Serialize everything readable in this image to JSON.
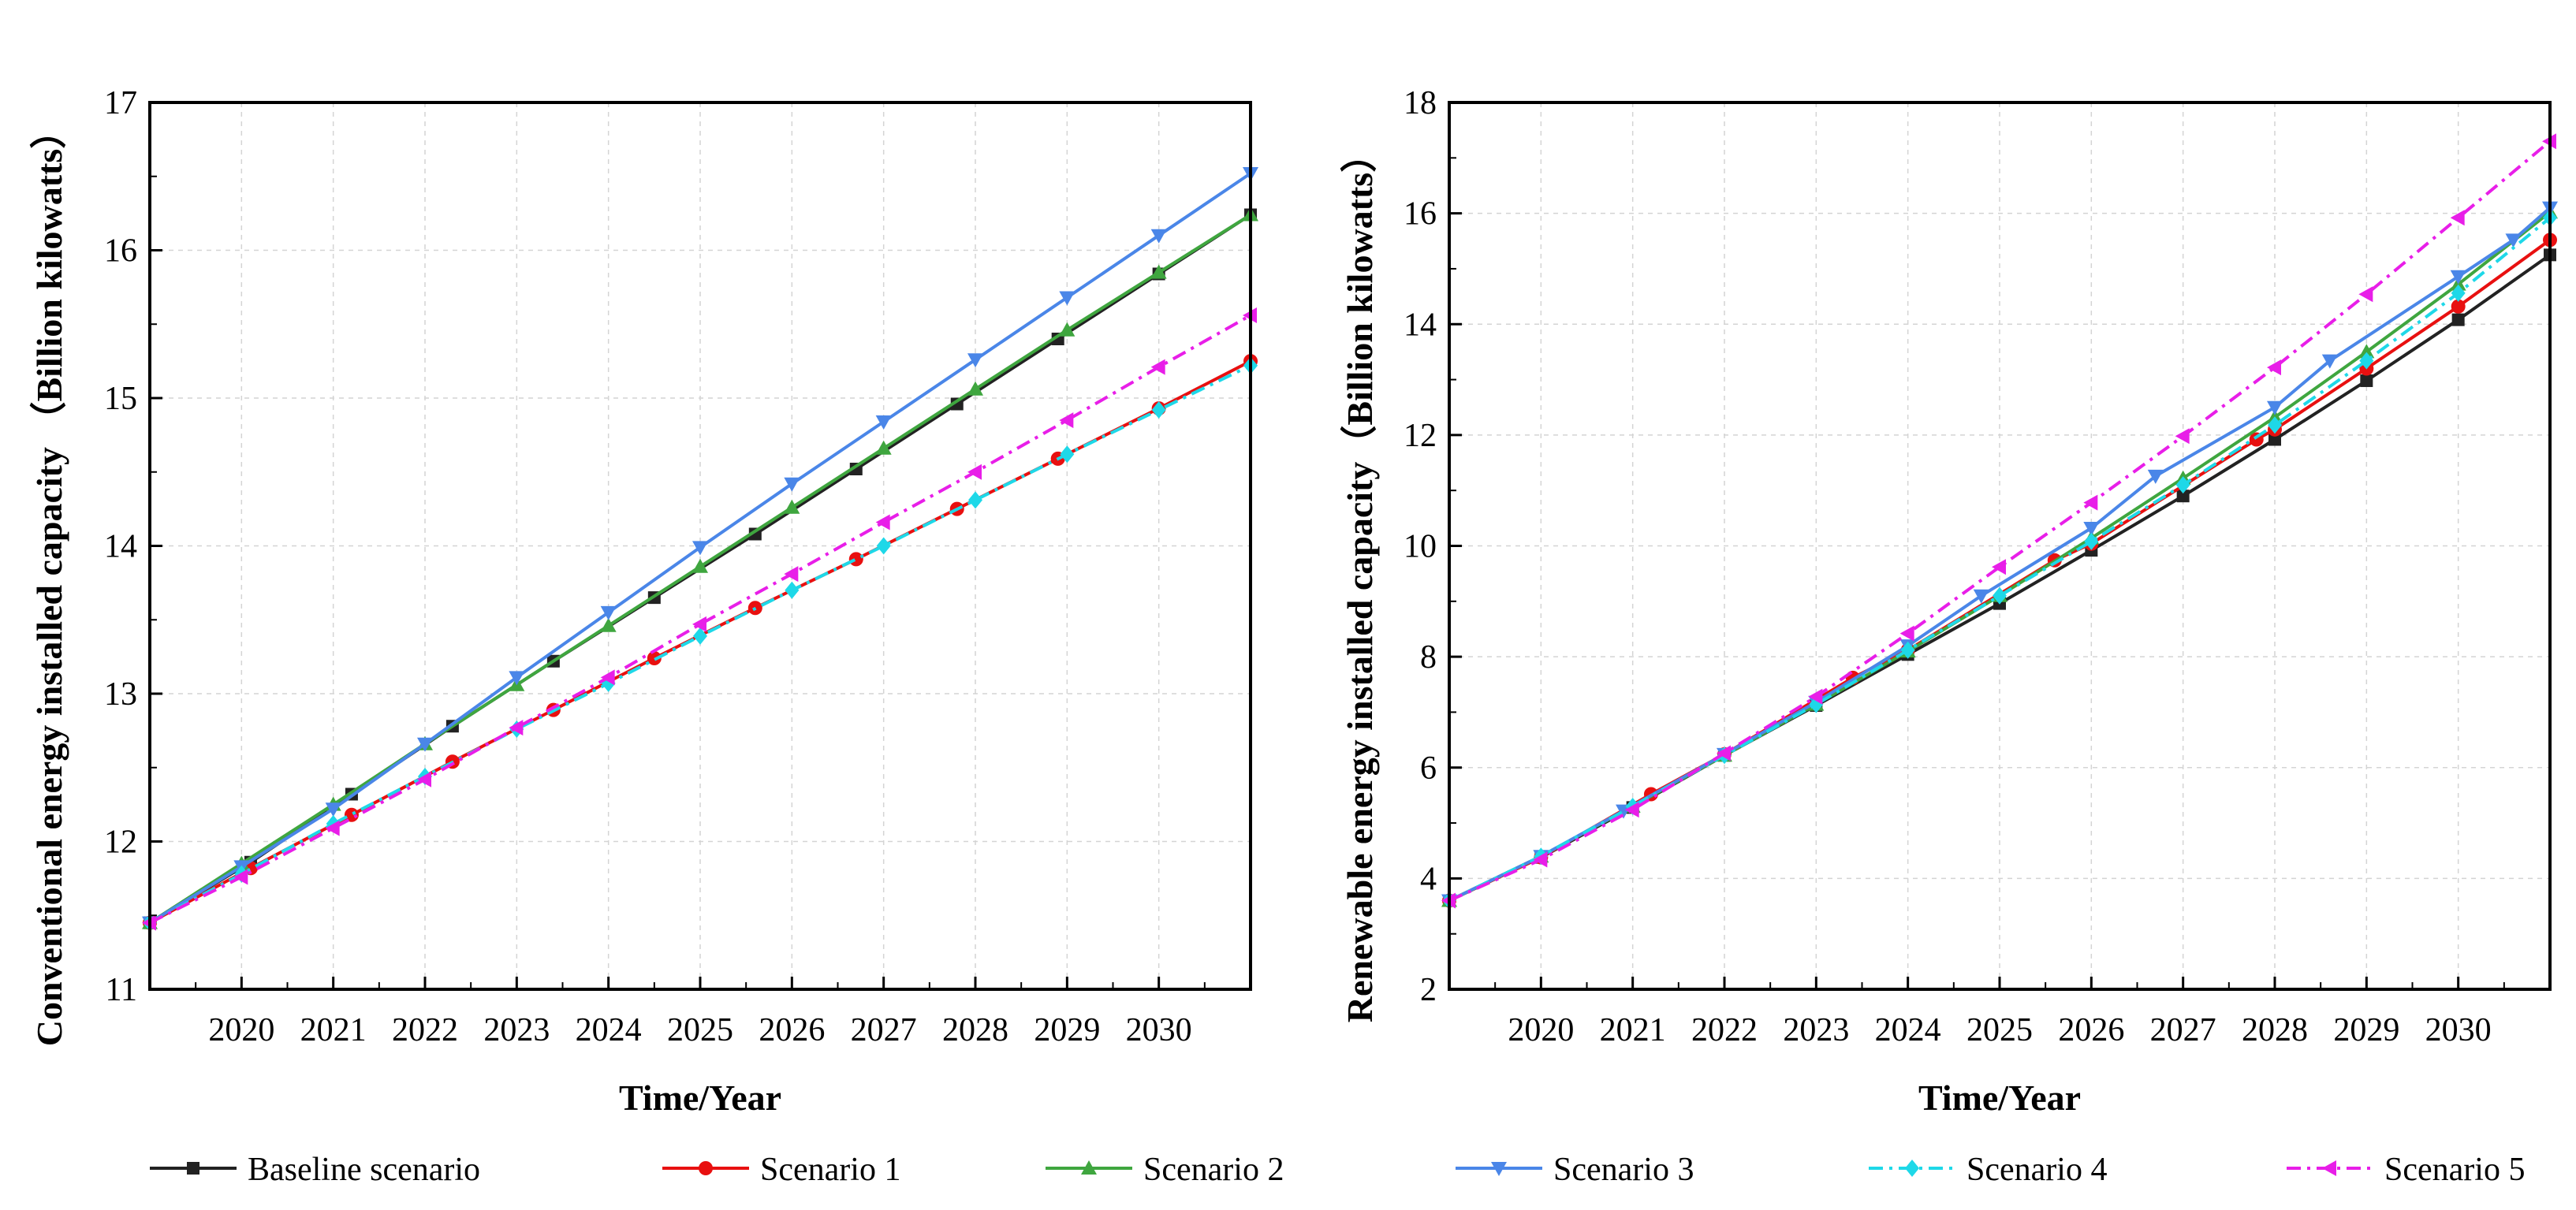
{
  "chart_data": [
    {
      "type": "line",
      "ylabel": "Conventional energy installed capacity （Billion kilowatts）",
      "xlabel": "Time/Year",
      "xlim": [
        2019,
        2031
      ],
      "ylim": [
        11,
        17
      ],
      "x_ticks": [
        2020,
        2021,
        2022,
        2023,
        2024,
        2025,
        2026,
        2027,
        2028,
        2029,
        2030
      ],
      "y_ticks": [
        11,
        12,
        13,
        14,
        15,
        16,
        17
      ],
      "grid": true,
      "series": [
        {
          "name": "Baseline scenario",
          "x": [
            2019.0,
            2020.1,
            2021.2,
            2022.3,
            2023.4,
            2024.5,
            2025.6,
            2026.7,
            2027.8,
            2028.9,
            2030.0,
            2031.0
          ],
          "values": [
            11.45,
            11.86,
            12.32,
            12.78,
            13.22,
            13.65,
            14.08,
            14.52,
            14.96,
            15.4,
            15.84,
            16.24
          ]
        },
        {
          "name": "Scenario 1",
          "x": [
            2019.0,
            2020.1,
            2021.2,
            2022.3,
            2023.4,
            2024.5,
            2025.6,
            2026.7,
            2027.8,
            2028.9,
            2030.0,
            2031.0
          ],
          "values": [
            11.45,
            11.82,
            12.18,
            12.54,
            12.89,
            13.24,
            13.58,
            13.91,
            14.25,
            14.59,
            14.93,
            15.25
          ]
        },
        {
          "name": "Scenario 2",
          "x": [
            2019.0,
            2020.0,
            2021.0,
            2022.0,
            2023.0,
            2024.0,
            2025.0,
            2026.0,
            2027.0,
            2028.0,
            2029.0,
            2030.0,
            2031.0
          ],
          "values": [
            11.45,
            11.85,
            12.25,
            12.66,
            13.06,
            13.46,
            13.86,
            14.26,
            14.66,
            15.06,
            15.46,
            15.85,
            16.24
          ]
        },
        {
          "name": "Scenario 3",
          "x": [
            2019.0,
            2020.0,
            2021.0,
            2022.0,
            2023.0,
            2024.0,
            2025.0,
            2026.0,
            2027.0,
            2028.0,
            2029.0,
            2030.0,
            2031.0
          ],
          "values": [
            11.45,
            11.83,
            12.22,
            12.66,
            13.11,
            13.55,
            13.99,
            14.42,
            14.84,
            15.26,
            15.68,
            16.1,
            16.52
          ]
        },
        {
          "name": "Scenario 4",
          "x": [
            2019.0,
            2020.0,
            2021.0,
            2022.0,
            2023.0,
            2024.0,
            2025.0,
            2026.0,
            2027.0,
            2028.0,
            2029.0,
            2030.0,
            2031.0
          ],
          "values": [
            11.45,
            11.78,
            12.12,
            12.44,
            12.76,
            13.07,
            13.39,
            13.7,
            14.0,
            14.31,
            14.62,
            14.92,
            15.22
          ]
        },
        {
          "name": "Scenario 5",
          "x": [
            2019.0,
            2020.0,
            2021.0,
            2022.0,
            2023.0,
            2024.0,
            2025.0,
            2026.0,
            2027.0,
            2028.0,
            2029.0,
            2030.0,
            2031.0
          ],
          "values": [
            11.45,
            11.76,
            12.09,
            12.42,
            12.77,
            13.11,
            13.47,
            13.81,
            14.16,
            14.5,
            14.85,
            15.21,
            15.56
          ]
        }
      ]
    },
    {
      "type": "line",
      "ylabel": "Renewable energy installed capacity（Billion kilowatts）",
      "xlabel": "Time/Year",
      "xlim": [
        2019,
        2031
      ],
      "ylim": [
        2,
        18
      ],
      "x_ticks": [
        2020,
        2021,
        2022,
        2023,
        2024,
        2025,
        2026,
        2027,
        2028,
        2029,
        2030
      ],
      "y_ticks": [
        2,
        4,
        6,
        8,
        10,
        12,
        14,
        16,
        18
      ],
      "grid": true,
      "series": [
        {
          "name": "Baseline scenario",
          "x": [
            2019.0,
            2020.0,
            2021.0,
            2022.0,
            2023.0,
            2024.0,
            2025.0,
            2026.0,
            2027.0,
            2028.0,
            2029.0,
            2030.0,
            2031.0
          ],
          "values": [
            3.6,
            4.38,
            5.28,
            6.22,
            7.12,
            8.04,
            8.96,
            9.92,
            10.9,
            11.92,
            12.98,
            14.08,
            15.25
          ]
        },
        {
          "name": "Scenario 1",
          "x": [
            2019.0,
            2020.0,
            2021.2,
            2022.0,
            2023.4,
            2024.0,
            2025.6,
            2026.0,
            2027.8,
            2028.0,
            2029.0,
            2030.0,
            2031.0
          ],
          "values": [
            3.6,
            4.38,
            5.52,
            6.24,
            7.62,
            8.12,
            9.74,
            10.04,
            11.92,
            12.1,
            13.2,
            14.32,
            15.52
          ]
        },
        {
          "name": "Scenario 2",
          "x": [
            2019.0,
            2020.0,
            2021.0,
            2022.0,
            2023.0,
            2024.0,
            2025.0,
            2026.0,
            2027.0,
            2028.0,
            2029.0,
            2030.0,
            2031.0
          ],
          "values": [
            3.6,
            4.4,
            5.3,
            6.22,
            7.14,
            8.1,
            9.1,
            10.14,
            11.22,
            12.32,
            13.5,
            14.72,
            16.02
          ]
        },
        {
          "name": "Scenario 3",
          "x": [
            2019.0,
            2020.0,
            2020.9,
            2022.0,
            2023.0,
            2024.0,
            2024.8,
            2026.0,
            2026.7,
            2028.0,
            2028.6,
            2030.0,
            2030.6,
            2031.0
          ],
          "values": [
            3.6,
            4.4,
            5.22,
            6.24,
            7.18,
            8.2,
            9.1,
            10.32,
            11.26,
            12.5,
            13.34,
            14.86,
            15.52,
            16.1
          ]
        },
        {
          "name": "Scenario 4",
          "x": [
            2019.0,
            2020.0,
            2021.0,
            2022.0,
            2023.0,
            2024.0,
            2025.0,
            2026.0,
            2027.0,
            2028.0,
            2029.0,
            2030.0,
            2031.0
          ],
          "values": [
            3.6,
            4.4,
            5.3,
            6.22,
            7.14,
            8.12,
            9.1,
            10.08,
            11.1,
            12.18,
            13.34,
            14.56,
            15.92
          ]
        },
        {
          "name": "Scenario 5",
          "x": [
            2019.0,
            2020.0,
            2021.0,
            2022.0,
            2023.0,
            2024.0,
            2025.0,
            2026.0,
            2027.0,
            2028.0,
            2029.0,
            2030.0,
            2031.0
          ],
          "values": [
            3.6,
            4.34,
            5.24,
            6.26,
            7.28,
            8.42,
            9.62,
            10.78,
            11.98,
            13.22,
            14.54,
            15.92,
            17.3
          ]
        }
      ]
    }
  ],
  "legend": {
    "placement": "bottom",
    "items": [
      {
        "name": "Baseline scenario",
        "color": "#222222",
        "marker": "square",
        "dash": "solid"
      },
      {
        "name": "Scenario 1",
        "color": "#e81010",
        "marker": "circle",
        "dash": "solid"
      },
      {
        "name": "Scenario 2",
        "color": "#3fa63f",
        "marker": "triangle-up",
        "dash": "solid"
      },
      {
        "name": "Scenario 3",
        "color": "#4a86e8",
        "marker": "triangle-down",
        "dash": "solid"
      },
      {
        "name": "Scenario 4",
        "color": "#1ed8e8",
        "marker": "diamond",
        "dash": "dashdot"
      },
      {
        "name": "Scenario 5",
        "color": "#e81ee8",
        "marker": "triangle-left",
        "dash": "dashdot"
      }
    ]
  }
}
